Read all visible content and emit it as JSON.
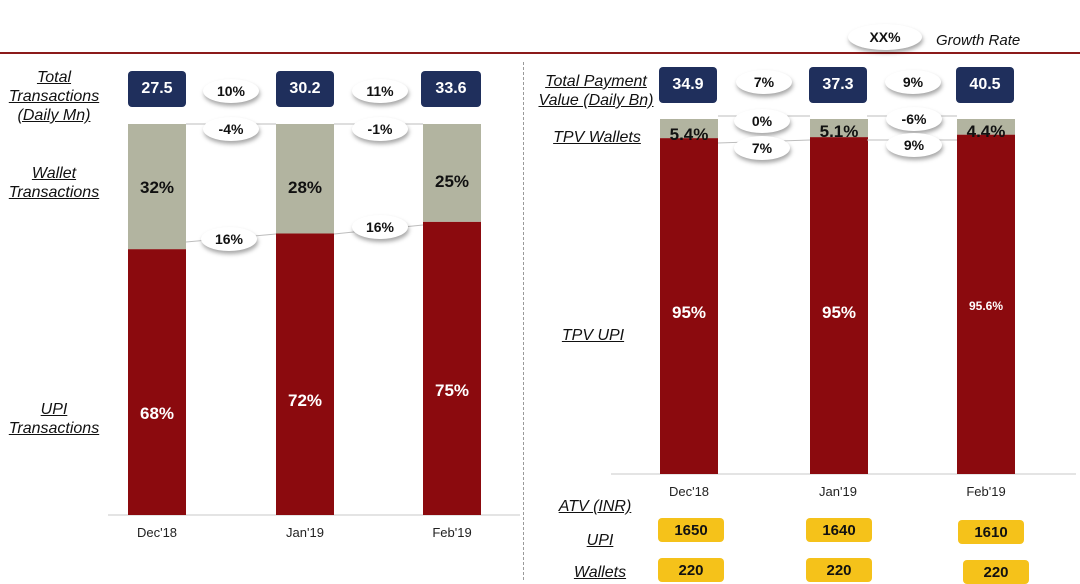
{
  "legend": {
    "marker": "XX%",
    "label": "Growth Rate"
  },
  "left": {
    "categories": [
      "Dec'18",
      "Jan'19",
      "Feb'19"
    ],
    "labels": {
      "total": "Total Transactions (Daily Mn)",
      "wallet": "Wallet Transactions",
      "upi": "UPI Transactions"
    },
    "totals": [
      "27.5",
      "30.2",
      "33.6"
    ],
    "total_growth": [
      "10%",
      "11%"
    ],
    "wallet_growth": [
      "-4%",
      "-1%"
    ],
    "upi_growth": [
      "16%",
      "16%"
    ]
  },
  "right": {
    "categories": [
      "Dec'18",
      "Jan'19",
      "Feb'19"
    ],
    "labels": {
      "total": "Total Payment Value (Daily Bn)",
      "wallets": "TPV Wallets",
      "upi": "TPV UPI",
      "atv": "ATV (INR)",
      "atv_upi": "UPI",
      "atv_wallets": "Wallets"
    },
    "totals": [
      "34.9",
      "37.3",
      "40.5"
    ],
    "total_growth": [
      "7%",
      "9%"
    ],
    "wallet_growth": [
      "0%",
      "-6%"
    ],
    "upi_growth": [
      "7%",
      "9%"
    ],
    "atv_upi": [
      "1650",
      "1640",
      "1610"
    ],
    "atv_wallets": [
      "220",
      "220",
      "220"
    ]
  },
  "chart_data": [
    {
      "type": "bar",
      "stacked": true,
      "categories": [
        "Dec'18",
        "Jan'19",
        "Feb'19"
      ],
      "series": [
        {
          "name": "UPI Transactions",
          "values": [
            68,
            72,
            75
          ],
          "labels": [
            "68%",
            "72%",
            "75%"
          ],
          "color": "#8b0a0e"
        },
        {
          "name": "Wallet Transactions",
          "values": [
            32,
            28,
            25
          ],
          "labels": [
            "32%",
            "28%",
            "25%"
          ],
          "color": "#b2b4a0"
        }
      ],
      "ylim": [
        0,
        100
      ]
    },
    {
      "type": "bar",
      "stacked": true,
      "categories": [
        "Dec'18",
        "Jan'19",
        "Feb'19"
      ],
      "series": [
        {
          "name": "TPV UPI",
          "values": [
            95,
            95,
            95.6
          ],
          "labels": [
            "95%",
            "95%",
            "95.6%"
          ],
          "color": "#8b0a0e"
        },
        {
          "name": "TPV Wallets",
          "values": [
            5.4,
            5.1,
            4.4
          ],
          "labels": [
            "5.4%",
            "5.1%",
            "4.4%"
          ],
          "color": "#b2b4a0"
        }
      ],
      "ylim": [
        0,
        100
      ]
    }
  ]
}
